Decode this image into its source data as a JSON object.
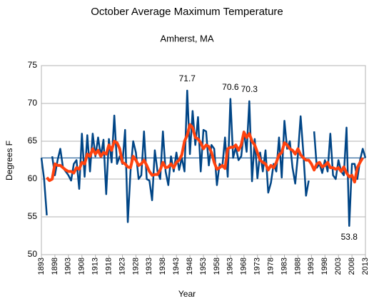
{
  "chart_data": {
    "type": "line",
    "title": "October Average Maximum Temperature",
    "subtitle": "Amherst, MA",
    "xlabel": "Year",
    "ylabel": "Degrees F",
    "x": [
      1893,
      1894,
      1895,
      1896,
      1897,
      1898,
      1899,
      1900,
      1901,
      1902,
      1903,
      1904,
      1905,
      1906,
      1907,
      1908,
      1909,
      1910,
      1911,
      1912,
      1913,
      1914,
      1915,
      1916,
      1917,
      1918,
      1919,
      1920,
      1921,
      1922,
      1923,
      1924,
      1925,
      1926,
      1927,
      1928,
      1929,
      1930,
      1931,
      1932,
      1933,
      1934,
      1935,
      1936,
      1937,
      1938,
      1939,
      1940,
      1941,
      1942,
      1943,
      1944,
      1945,
      1946,
      1947,
      1948,
      1949,
      1950,
      1951,
      1952,
      1953,
      1954,
      1955,
      1956,
      1957,
      1958,
      1959,
      1960,
      1961,
      1962,
      1963,
      1964,
      1965,
      1966,
      1967,
      1968,
      1969,
      1970,
      1971,
      1972,
      1973,
      1974,
      1975,
      1976,
      1977,
      1978,
      1979,
      1980,
      1981,
      1982,
      1983,
      1984,
      1985,
      1986,
      1987,
      1988,
      1989,
      1990,
      1991,
      1992,
      1993,
      1994,
      1995,
      1996,
      1997,
      1998,
      1999,
      2000,
      2001,
      2002,
      2003,
      2004,
      2005,
      2006,
      2007,
      2008,
      2009,
      2010,
      2011,
      2012,
      2013
    ],
    "series": [
      {
        "color": "#004586",
        "width": 2.5,
        "values": [
          62.8,
          60,
          55.2,
          null,
          63,
          60.5,
          62.5,
          64,
          61.5,
          61,
          60.5,
          59.8,
          62,
          62.5,
          58.7,
          66,
          60.3,
          65.8,
          61,
          66,
          63,
          65.5,
          63,
          65.2,
          58,
          65.3,
          62.2,
          68.4,
          62,
          63,
          62,
          66.5,
          54.3,
          61,
          65,
          63.5,
          60,
          60.5,
          66.3,
          60,
          59.8,
          57.2,
          63.8,
          61,
          60,
          66.3,
          61,
          59.2,
          63,
          61,
          63.5,
          61.2,
          62.8,
          61,
          71.7,
          63.3,
          69,
          64.5,
          68.2,
          61,
          66.5,
          66.3,
          61.8,
          64.5,
          64,
          59.2,
          62,
          61.6,
          65.5,
          60.3,
          70.6,
          62.8,
          64.2,
          62.5,
          63,
          66.3,
          63.6,
          70.3,
          59.7,
          65.3,
          60.1,
          63.5,
          61,
          63.8,
          58.2,
          59.5,
          62,
          61,
          65.5,
          60.2,
          67.7,
          64,
          65,
          61.5,
          59.4,
          63.2,
          68.3,
          63.5,
          57.8,
          59.8,
          null,
          66.3,
          61.5,
          62,
          60.8,
          62.5,
          61,
          66,
          60.5,
          60,
          62.5,
          61,
          60.5,
          66.8,
          53.8,
          62,
          62,
          60,
          62.5,
          64,
          62.8
        ]
      },
      {
        "color": "#ff420e",
        "width": 4,
        "values": [
          null,
          null,
          60.2,
          59.8,
          60,
          62,
          61.8,
          61.8,
          61.5,
          61.2,
          61,
          61,
          60.8,
          61.5,
          61.3,
          62.2,
          62,
          63.3,
          63,
          64,
          63.3,
          63.8,
          63,
          63.5,
          63.3,
          64.5,
          63.8,
          65,
          64.8,
          64,
          62.2,
          62,
          61.6,
          61.5,
          63,
          62.5,
          61.8,
          62,
          62.5,
          61.8,
          61,
          60.5,
          60.6,
          60.6,
          61.2,
          62.2,
          61.5,
          61.6,
          62,
          61.5,
          62.2,
          62.5,
          63.2,
          65,
          65.8,
          67.2,
          66.8,
          65.5,
          65.3,
          64.8,
          64,
          64.5,
          64.3,
          63.5,
          62.2,
          61.3,
          61.5,
          61.8,
          61.4,
          64,
          64.2,
          64.2,
          64.5,
          63.8,
          64.5,
          66.2,
          65.5,
          66,
          65,
          64.5,
          63.5,
          62.5,
          62.2,
          62,
          61.2,
          61.8,
          61.5,
          62.2,
          63.2,
          63.5,
          64.8,
          64.5,
          64,
          63.8,
          63.3,
          64,
          63.2,
          62.8,
          62.5,
          62.5,
          62,
          61.2,
          62,
          62.2,
          61.6,
          61.8,
          62.2,
          61.5,
          61.5,
          61.3,
          61.5,
          61,
          61.6,
          60.8,
          60.3,
          60.5,
          59.6,
          61.5,
          62.2,
          62.8,
          null
        ]
      }
    ],
    "reference_line": 62.8,
    "annotations": [
      {
        "x": 1947,
        "value": 71.7
      },
      {
        "x": 1963,
        "value": 70.6
      },
      {
        "x": 1970,
        "value": 70.3
      },
      {
        "x": 2007,
        "value": 53.8
      }
    ],
    "xlim": [
      1893,
      2013
    ],
    "xticks": [
      1893,
      1898,
      1903,
      1908,
      1913,
      1918,
      1923,
      1928,
      1933,
      1938,
      1943,
      1948,
      1953,
      1958,
      1963,
      1968,
      1973,
      1978,
      1983,
      1988,
      1993,
      1998,
      2003,
      2008,
      2013
    ],
    "ylim": [
      50,
      75
    ],
    "yticks": [
      50,
      55,
      60,
      65,
      70,
      75
    ],
    "grid": true
  }
}
